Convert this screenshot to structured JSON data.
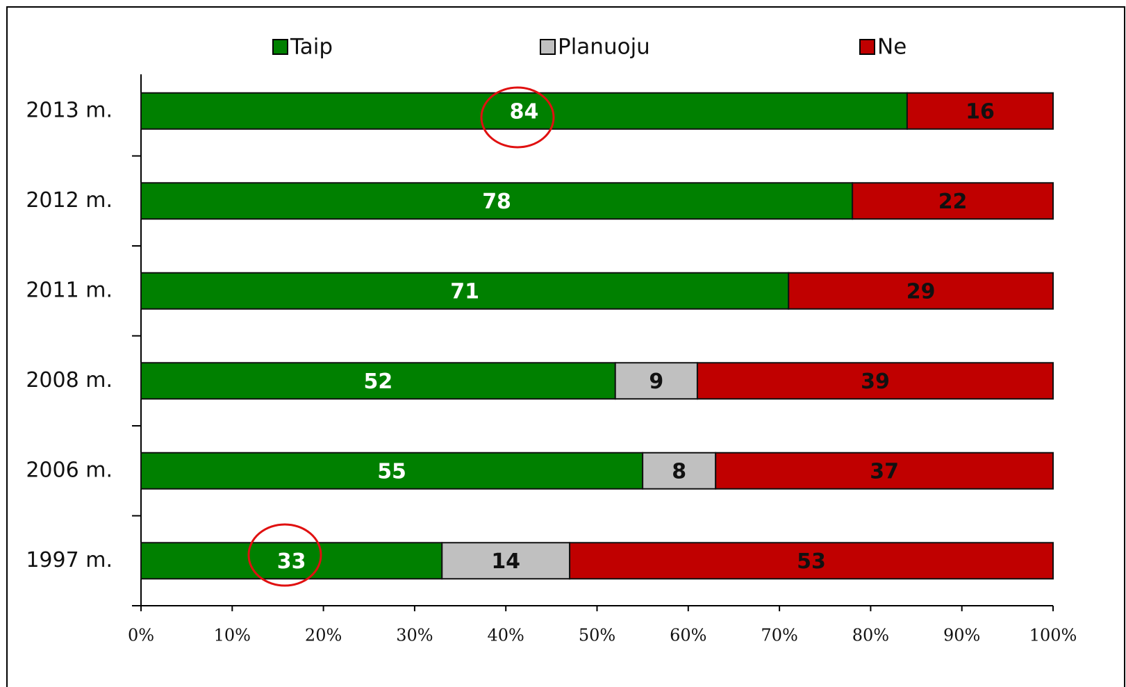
{
  "chart_data": {
    "type": "stacked_barh",
    "categories": [
      "2013 m.",
      "2012 m.",
      "2011 m.",
      "2008 m.",
      "2006 m.",
      "1997 m."
    ],
    "series": [
      {
        "name": "Taip",
        "color": "#008000",
        "values": [
          84,
          78,
          71,
          52,
          55,
          33
        ]
      },
      {
        "name": "Planuoju",
        "color": "#c0c0c0",
        "values": [
          null,
          null,
          null,
          9,
          8,
          14
        ]
      },
      {
        "name": "Ne",
        "color": "#c00000",
        "values": [
          16,
          22,
          29,
          39,
          37,
          53
        ]
      }
    ],
    "xlim": [
      0,
      100
    ],
    "xticks": [
      {
        "value": 0,
        "label": "0%"
      },
      {
        "value": 10,
        "label": "10%"
      },
      {
        "value": 20,
        "label": "20%"
      },
      {
        "value": 30,
        "label": "30%"
      },
      {
        "value": 40,
        "label": "40%"
      },
      {
        "value": 50,
        "label": "50%"
      },
      {
        "value": 60,
        "label": "60%"
      },
      {
        "value": 70,
        "label": "70%"
      },
      {
        "value": 80,
        "label": "80%"
      },
      {
        "value": 90,
        "label": "90%"
      },
      {
        "value": 100,
        "label": "100%"
      }
    ],
    "legend": "top",
    "grid": false
  }
}
